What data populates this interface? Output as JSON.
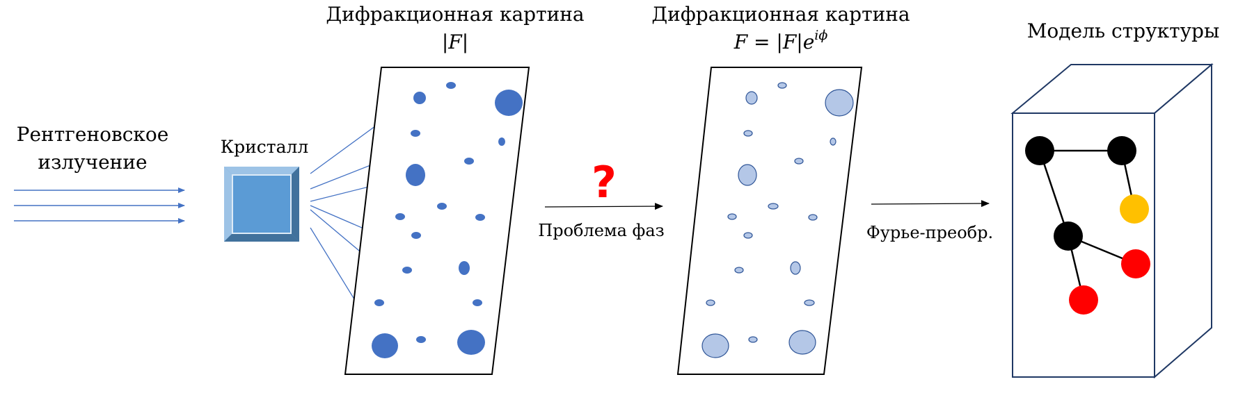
{
  "colors": {
    "beam": "#4472C4",
    "spot_dark": "#4472C4",
    "spot_light_fill": "#B4C7E7",
    "spot_light_stroke": "#2F5597",
    "crystal_face": "#5B9BD5",
    "crystal_light": "#9DC3E6",
    "crystal_dark": "#41719C",
    "frame": "#000000",
    "box_stroke": "#1F3864",
    "question": "#FF0000",
    "atom_black": "#000000",
    "atom_yellow": "#FFC000",
    "atom_red": "#FF0000"
  },
  "labels": {
    "xray_line1": "Рентгеновское",
    "xray_line2": "излучение",
    "crystal": "Кристалл",
    "pattern1_title": "Дифракционная картина",
    "pattern1_formula": "|F|",
    "pattern2_title": "Дифракционная картина",
    "pattern2_formula_lhs": "F = |F|e",
    "pattern2_formula_sup": "iϕ",
    "phase_problem": "Проблема фаз",
    "question_mark": "?",
    "fourier": "Фурье-преобр.",
    "model_title": "Модель структуры"
  },
  "atoms": [
    {
      "id": "a1",
      "color": "black"
    },
    {
      "id": "a2",
      "color": "black"
    },
    {
      "id": "a3",
      "color": "yellow"
    },
    {
      "id": "a4",
      "color": "black"
    },
    {
      "id": "a5",
      "color": "red"
    },
    {
      "id": "a6",
      "color": "red"
    }
  ]
}
